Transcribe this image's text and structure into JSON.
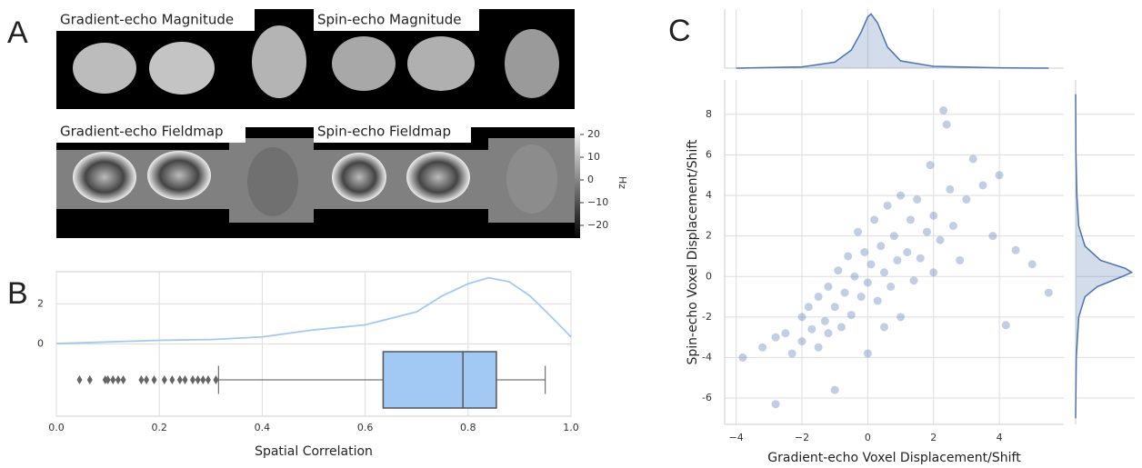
{
  "panel_labels": [
    "A",
    "B",
    "C"
  ],
  "image_captions": [
    "Gradient-echo Magnitude",
    "Spin-echo Magnitude",
    "Gradient-echo Fieldmap",
    "Spin-echo Fieldmap"
  ],
  "chart_data": [
    {
      "type": "colorbar",
      "ylabel": "Hz",
      "ylim": [
        -25.6,
        23.2
      ],
      "yticks": [
        20,
        10,
        0,
        {
          "value": -10,
          "label": "−10"
        },
        {
          "value": -20,
          "label": "−20"
        }
      ]
    },
    {
      "type": "density_box",
      "xlabel": "Spatial Correlation",
      "color": "#a1c9f4",
      "grid": true,
      "xlim": [
        0,
        1
      ],
      "ylim": [
        -3.6,
        3.6
      ],
      "xticks": [
        {
          "value": 0,
          "label": "0.0"
        },
        0.2,
        0.4,
        0.6,
        0.8,
        {
          "value": 1,
          "label": "1.0"
        }
      ],
      "yticks": [
        0,
        2
      ],
      "kde": {
        "x": [
          0,
          0.1,
          0.2,
          0.3,
          0.4,
          0.5,
          0.6,
          0.7,
          0.75,
          0.8,
          0.84,
          0.88,
          0.92,
          0.96,
          1.0
        ],
        "values": [
          0.02,
          0.1,
          0.18,
          0.22,
          0.35,
          0.7,
          0.95,
          1.6,
          2.4,
          3.0,
          3.3,
          3.1,
          2.4,
          1.4,
          0.35
        ]
      },
      "box": {
        "whisker_low": 0.315,
        "q1": 0.635,
        "median": 0.79,
        "q3": 0.855,
        "whisker_high": 0.95,
        "outliers": [
          0.045,
          0.065,
          0.095,
          0.1,
          0.11,
          0.12,
          0.13,
          0.165,
          0.175,
          0.19,
          0.21,
          0.225,
          0.24,
          0.25,
          0.265,
          0.275,
          0.285,
          0.295,
          0.31
        ]
      }
    },
    {
      "type": "scatter",
      "xlabel": "Gradient-echo Voxel Displacement/Shift",
      "ylabel": "Spin-echo Voxel Displacement/Shift",
      "color": "#4c72b0",
      "grid": true,
      "xlim": [
        -4.35,
        5.96
      ],
      "ylim": [
        -7.3,
        9.7
      ],
      "xticks": [
        {
          "value": -4,
          "label": "−4"
        },
        {
          "value": -2,
          "label": "−2"
        },
        0,
        2,
        4
      ],
      "yticks": [
        -6,
        -4,
        -2,
        0,
        2,
        4,
        6,
        8
      ],
      "x": [
        -3.2,
        -2.8,
        -2.8,
        -2.5,
        -2.3,
        -2.0,
        -2.0,
        -1.8,
        -1.7,
        -1.5,
        -1.5,
        -1.3,
        -1.2,
        -1.0,
        -1.0,
        -0.9,
        -0.8,
        -0.7,
        -0.6,
        -0.5,
        -0.4,
        -0.3,
        -0.2,
        -0.1,
        0,
        0,
        0.1,
        0.2,
        0.3,
        0.4,
        0.5,
        0.6,
        0.7,
        0.8,
        0.9,
        1.0,
        1.0,
        1.2,
        1.3,
        1.4,
        1.5,
        1.6,
        1.8,
        1.9,
        2.0,
        2.0,
        2.2,
        2.3,
        2.4,
        2.5,
        2.6,
        2.8,
        3.0,
        3.2,
        3.5,
        3.8,
        4.0,
        4.2,
        4.5,
        5.0,
        5.5,
        -3.8,
        -1.2,
        0.5
      ],
      "y": [
        -3.5,
        -3.0,
        -6.3,
        -2.8,
        -3.8,
        -2.0,
        -3.2,
        -1.5,
        -2.6,
        -1.0,
        -3.5,
        -2.2,
        -0.5,
        -1.5,
        -5.6,
        0.3,
        -2.5,
        -0.8,
        1.0,
        -1.9,
        0.0,
        2.2,
        -1.0,
        1.2,
        -0.3,
        -3.8,
        0.6,
        2.8,
        -1.2,
        1.5,
        0.2,
        3.5,
        -0.5,
        2.0,
        0.8,
        4.0,
        -2.0,
        1.2,
        2.8,
        -0.2,
        3.8,
        0.9,
        2.2,
        5.5,
        0.2,
        3.0,
        1.8,
        8.2,
        7.5,
        4.3,
        2.5,
        0.8,
        3.8,
        5.8,
        4.5,
        2.0,
        5.0,
        -2.4,
        1.3,
        0.6,
        -0.8,
        -4.0,
        -2.8,
        -2.5
      ]
    },
    {
      "type": "marginal",
      "orientation": "vertical",
      "color": "#4c72b0",
      "xlim": [
        -4.35,
        5.96
      ],
      "ylim": [
        0,
        0.95
      ],
      "x": [
        -4,
        -2,
        -1,
        -0.5,
        -0.2,
        0,
        0.1,
        0.3,
        0.6,
        1,
        2,
        4,
        5.5
      ],
      "values": [
        0,
        0.02,
        0.1,
        0.3,
        0.6,
        0.85,
        0.9,
        0.75,
        0.35,
        0.12,
        0.03,
        0.005,
        0
      ]
    },
    {
      "type": "marginal",
      "orientation": "horizontal",
      "color": "#4c72b0",
      "xlim": [
        -7.3,
        9.7
      ],
      "ylim": [
        0,
        0.95
      ],
      "x": [
        -7,
        -4,
        -2,
        -1,
        -0.5,
        0,
        0.2,
        0.4,
        0.8,
        1.5,
        2.5,
        4,
        6,
        9
      ],
      "values": [
        0,
        0.01,
        0.05,
        0.15,
        0.35,
        0.75,
        0.9,
        0.8,
        0.4,
        0.15,
        0.05,
        0.02,
        0.005,
        0
      ]
    }
  ]
}
